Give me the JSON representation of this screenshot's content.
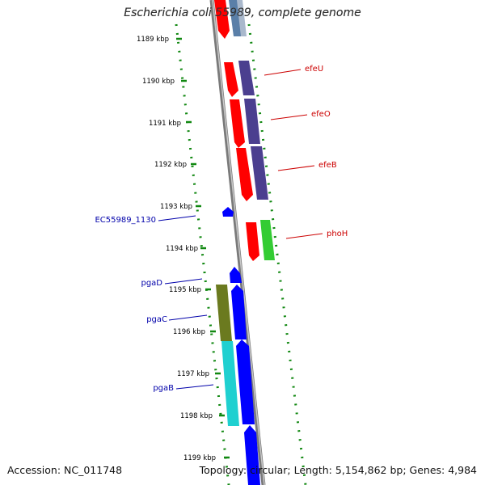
{
  "title": "Escherichia coli 55989, complete genome",
  "accession": "Accession: NC_011748",
  "summary": "Topology: circular; Length: 5,154,862 bp; Genes: 4,984",
  "scale_labels": [
    "1189 kbp",
    "1190 kbp",
    "1191 kbp",
    "1192 kbp",
    "1193 kbp",
    "1194 kbp",
    "1195 kbp",
    "1196 kbp",
    "1197 kbp",
    "1198 kbp",
    "1199 kbp"
  ],
  "genes": {
    "efeU": "efeU",
    "efeO": "efeO",
    "efeB": "efeB",
    "phoH": "phoH",
    "ec1130": "EC55989_1130",
    "pgaD": "pgaD",
    "pgaC": "pgaC",
    "pgaB": "pgaB"
  },
  "colors": {
    "red": "#ff0000",
    "purple": "#4b3f8f",
    "blue": "#0000ff",
    "olive": "#6b7a1f",
    "cyan": "#1fd0d0",
    "green": "#33cc33",
    "dots": "#118811",
    "label_red": "#cc0000",
    "label_blue": "#0000aa"
  }
}
